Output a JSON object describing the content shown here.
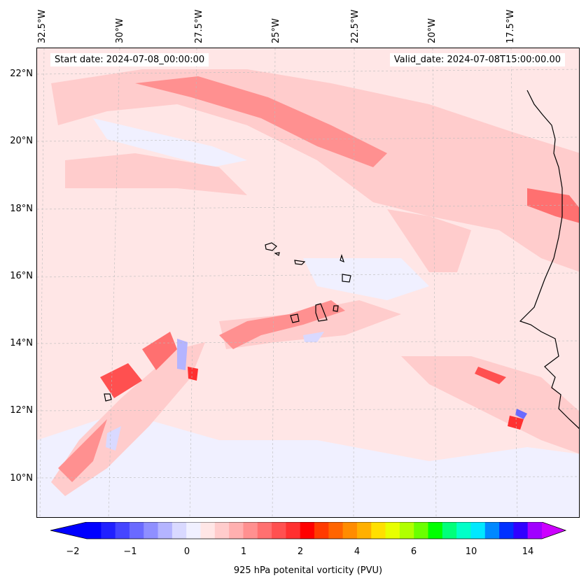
{
  "header": {
    "start_date": "Start date: 2024-07-08_00:00:00",
    "valid_date": "Valid_date: 2024-07-08T15:00:00.00"
  },
  "axes": {
    "longitude_labels": [
      "32.5°W",
      "30°W",
      "27.5°W",
      "25°W",
      "22.5°W",
      "20°W",
      "17.5°W"
    ],
    "latitude_labels": [
      "22°N",
      "20°N",
      "18°N",
      "16°N",
      "14°N",
      "12°N",
      "10°N"
    ]
  },
  "colorbar": {
    "label": "925 hPa potenital vorticity (PVU)",
    "tick_labels": [
      "−2",
      "−1",
      "0",
      "1",
      "2",
      "4",
      "6",
      "10",
      "14"
    ],
    "colors": [
      "#0000ff",
      "#2020ff",
      "#4545ff",
      "#6a6aff",
      "#8f8fff",
      "#b4b4ff",
      "#d9d9ff",
      "#f0f0ff",
      "#ffe6e6",
      "#ffcccc",
      "#ffb0b0",
      "#ff9090",
      "#ff7070",
      "#ff5050",
      "#ff3030",
      "#ff0000",
      "#ff3a00",
      "#ff6400",
      "#ff8c00",
      "#ffb000",
      "#ffe000",
      "#e8ff00",
      "#b0ff00",
      "#6aff00",
      "#00ff00",
      "#00ff7a",
      "#00ffc8",
      "#00e8ff",
      "#0088ff",
      "#0030ff",
      "#3000ff",
      "#a000ff"
    ],
    "under_color": "#0000ff",
    "over_color": "#cc00ff"
  },
  "map": {
    "background_color": "#f0f0ff",
    "coast_color": "#000000",
    "gridline_color": "#bbbbbb"
  }
}
